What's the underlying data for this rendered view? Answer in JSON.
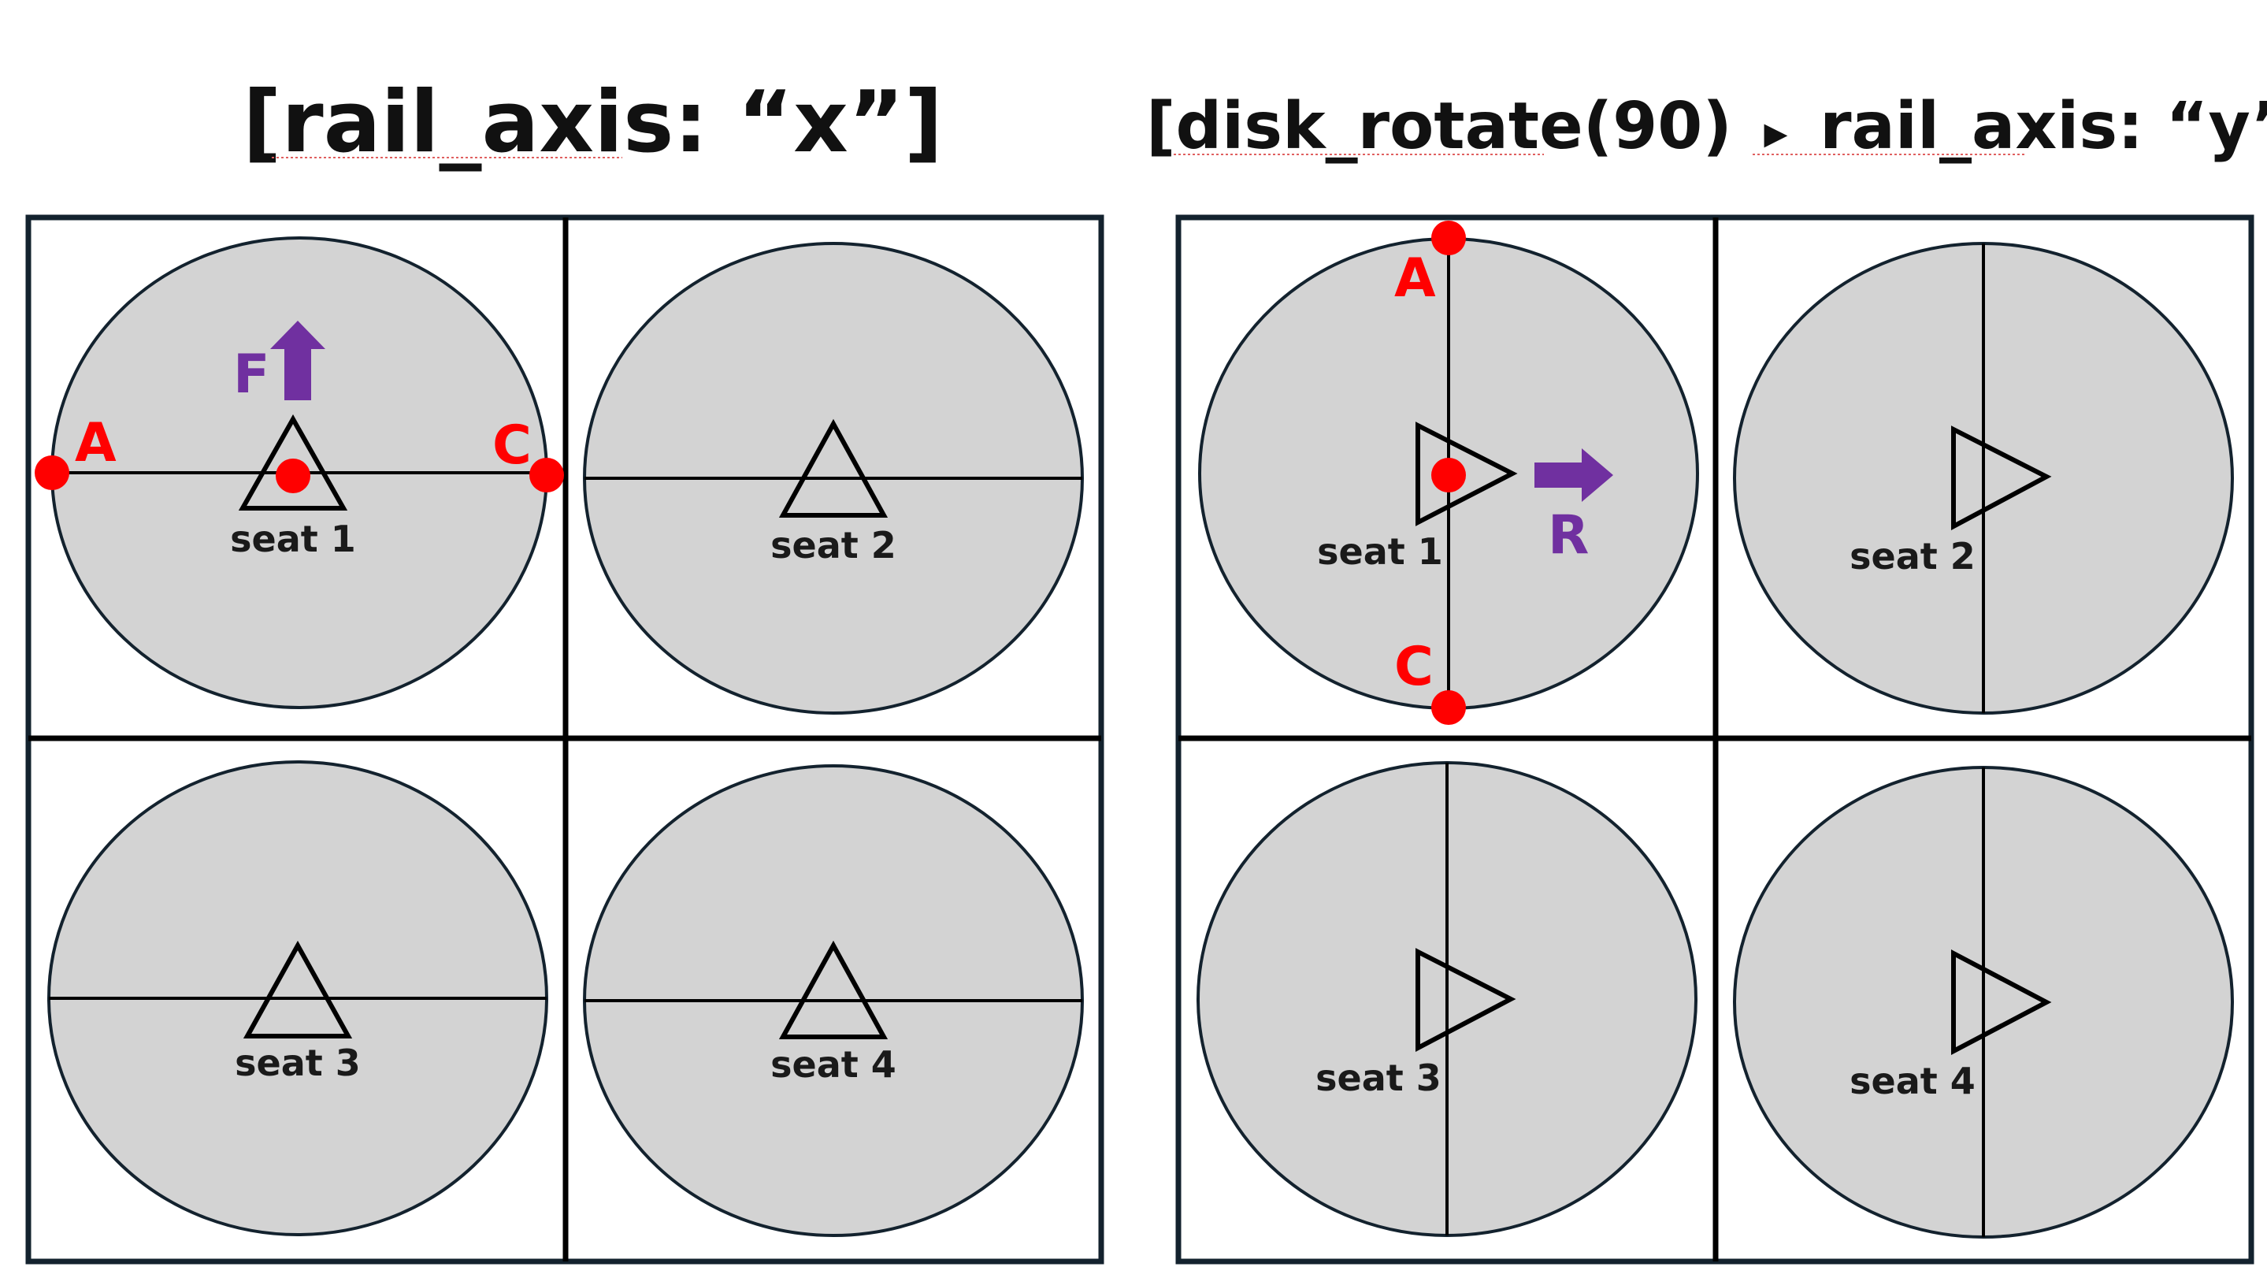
{
  "panels": [
    {
      "title": "[rail_axis: “x”]",
      "rail_axis": "x",
      "seats": [
        "seat 1",
        "seat 2",
        "seat 3",
        "seat 4"
      ],
      "points": [
        "A",
        "C"
      ],
      "force": "F",
      "force_direction": "up",
      "seat_pointing": "up"
    },
    {
      "title_prefix": "[disk_rotate(90)",
      "title_arrow": "▸",
      "title_suffix": "rail_axis: “y”]",
      "rail_axis": "y",
      "seats": [
        "seat 1",
        "seat 2",
        "seat 3",
        "seat 4"
      ],
      "points": [
        "A",
        "C"
      ],
      "force": "R",
      "force_direction": "right",
      "seat_pointing": "right"
    }
  ],
  "colors": {
    "frame": "#13222e",
    "disk_fill": "#d3d3d3",
    "points": "#ff0000",
    "force": "#7030a0",
    "text": "#111111"
  }
}
